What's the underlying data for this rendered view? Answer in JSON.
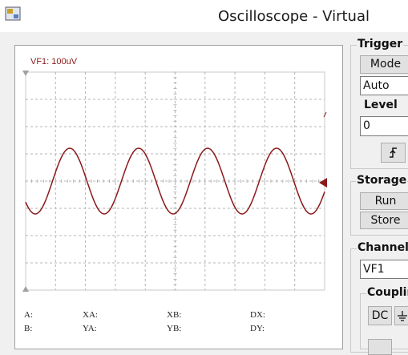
{
  "window": {
    "title": "Oscilloscope - Virtual"
  },
  "screen": {
    "channel_label": "VF1: 100uV"
  },
  "readouts": {
    "a": "A:",
    "b": "B:",
    "xa": "XA:",
    "ya": "YA:",
    "xb": "XB:",
    "yb": "YB:",
    "dx": "DX:",
    "dy": "DY:"
  },
  "trigger": {
    "title": "Trigger",
    "mode_button": "Mode",
    "mode_value": "Auto",
    "level_label": "Level",
    "level_value": "0"
  },
  "storage": {
    "title": "Storage",
    "run_button": "Run",
    "store_button": "Store"
  },
  "channel": {
    "title": "Channel",
    "value": "VF1",
    "coupling_title": "Coupling",
    "dc_button": "DC"
  }
}
